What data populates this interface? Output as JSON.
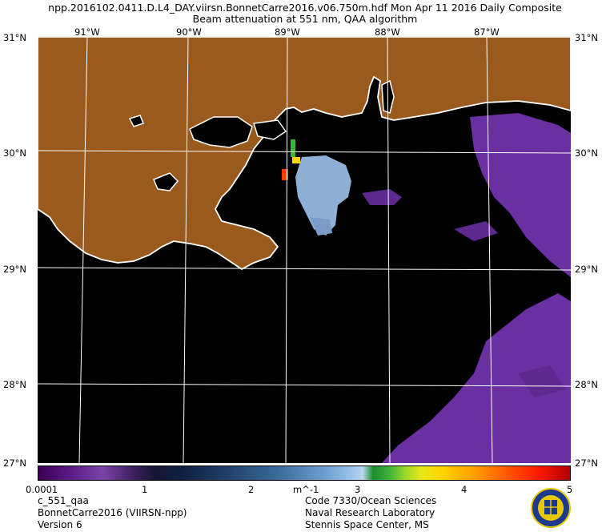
{
  "header": {
    "line1": "npp.2016102.0411.D.L4_DAY.viirsn.BonnetCarre2016.v06.750m.hdf    Mon Apr 11 2016 Daily Composite",
    "line2": "Beam attenuation at 551 nm, QAA algorithm"
  },
  "map": {
    "lat_labels": [
      "31°N",
      "30°N",
      "29°N",
      "28°N",
      "27°N"
    ],
    "lon_labels": [
      "91°W",
      "90°W",
      "89°W",
      "88°W",
      "87°W"
    ],
    "land_color": "#9a5a1e",
    "coast_color": "#ffffff",
    "water_color": "#000000",
    "plume_color": "#8fb0d6",
    "low_value_color": "#6a2fa0"
  },
  "colorbar": {
    "ticks": [
      "0.0001",
      "1",
      "2",
      "m^-1",
      "3",
      "4",
      "5"
    ]
  },
  "footer": {
    "left": [
      "c_551_qaa",
      "BonnetCarre2016 (VIIRSN-npp)",
      "Version 6"
    ],
    "right": [
      "Code 7330/Ocean Sciences",
      "Naval Research Laboratory",
      "Stennis Space Center, MS"
    ]
  },
  "logo": {
    "icon": "nrl-seal-icon"
  }
}
